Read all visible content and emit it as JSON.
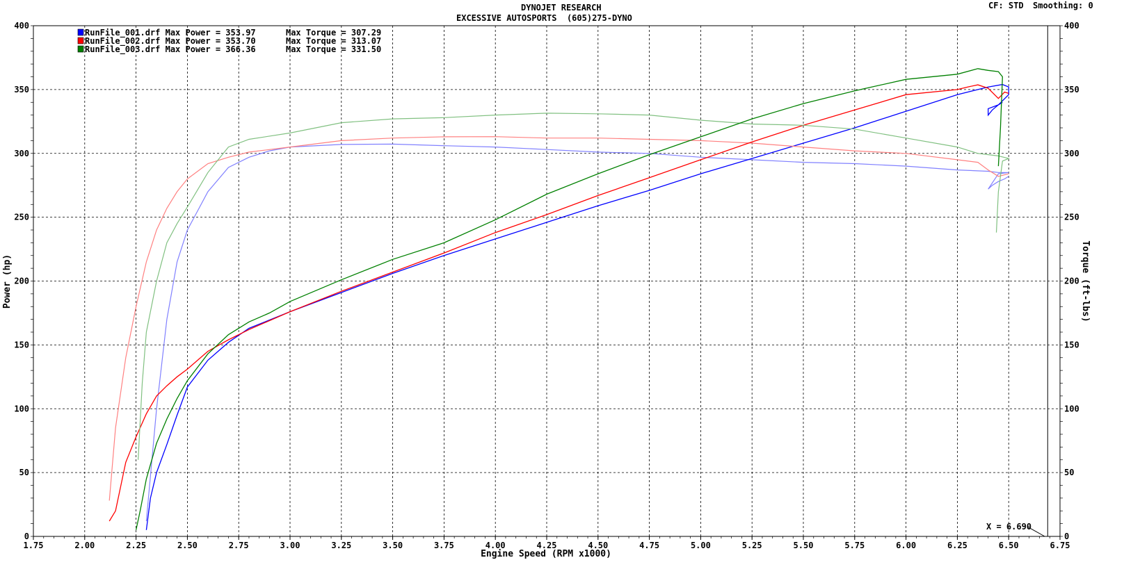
{
  "header": {
    "title": "DYNOJET RESEARCH",
    "subtitle": "EXCESSIVE AUTOSPORTS  (605)275-DYNO",
    "cf": "CF: STD",
    "smoothing": "Smoothing: 0"
  },
  "cursor": {
    "label": "X = 6.690",
    "x": 6.69
  },
  "chart_data": {
    "type": "line",
    "xlabel": "Engine Speed (RPM x1000)",
    "ylabel": "Power (hp)",
    "y2label": "Torque (ft-lbs)",
    "xlim": [
      1.75,
      6.75
    ],
    "ylim": [
      0,
      400
    ],
    "y2lim": [
      0,
      400
    ],
    "xticks": [
      "1.75",
      "2.00",
      "2.25",
      "2.50",
      "2.75",
      "3.00",
      "3.25",
      "3.50",
      "3.75",
      "4.00",
      "4.25",
      "4.50",
      "4.75",
      "5.00",
      "5.25",
      "5.50",
      "5.75",
      "6.00",
      "6.25",
      "6.50",
      "6.75"
    ],
    "yticks": [
      "0",
      "50",
      "100",
      "150",
      "200",
      "250",
      "300",
      "350",
      "400"
    ],
    "grid": true,
    "legend_position": "top-left",
    "series": [
      {
        "name": "RunFile_001.drf",
        "legend": "RunFile_001.drf Max Power = 353.97      Max Torque = 307.29",
        "color": "#0000ff",
        "power": {
          "x": [
            2.3,
            2.32,
            2.35,
            2.4,
            2.45,
            2.5,
            2.6,
            2.7,
            2.8,
            3.0,
            3.25,
            3.5,
            3.75,
            4.0,
            4.25,
            4.5,
            4.75,
            5.0,
            5.25,
            5.5,
            5.75,
            6.0,
            6.25,
            6.4,
            6.47,
            6.5,
            6.5,
            6.45,
            6.4,
            6.4,
            6.42,
            6.45,
            6.47
          ],
          "y": [
            5,
            30,
            50,
            72,
            95,
            117,
            138,
            152,
            163,
            176,
            191,
            206,
            220,
            233,
            246,
            259,
            271,
            284,
            296,
            308,
            320,
            333,
            346,
            352,
            353.97,
            352,
            346,
            338,
            335,
            330,
            334,
            338,
            340
          ]
        },
        "torque": {
          "x": [
            2.3,
            2.35,
            2.4,
            2.45,
            2.5,
            2.55,
            2.6,
            2.7,
            2.8,
            2.9,
            3.0,
            3.25,
            3.5,
            3.75,
            4.0,
            4.25,
            4.5,
            4.75,
            5.0,
            5.25,
            5.5,
            5.75,
            6.0,
            6.25,
            6.4,
            6.45,
            6.5,
            6.45,
            6.4,
            6.42,
            6.45,
            6.48,
            6.5
          ],
          "y": [
            12,
            100,
            170,
            215,
            240,
            255,
            270,
            289,
            297,
            302,
            305,
            307,
            307.29,
            306,
            305,
            303,
            301,
            300,
            297,
            295,
            293,
            292,
            290,
            287,
            286,
            285,
            285,
            284,
            272,
            275,
            278,
            280,
            282
          ]
        }
      },
      {
        "name": "RunFile_002.drf",
        "legend": "RunFile_002.drf Max Power = 353.70      Max Torque = 313.07",
        "color": "#ff0000",
        "power": {
          "x": [
            2.12,
            2.15,
            2.2,
            2.25,
            2.3,
            2.35,
            2.4,
            2.45,
            2.5,
            2.6,
            2.7,
            2.8,
            3.0,
            3.25,
            3.5,
            3.75,
            4.0,
            4.25,
            4.5,
            4.75,
            5.0,
            5.25,
            5.5,
            5.75,
            6.0,
            6.25,
            6.3,
            6.35,
            6.4,
            6.45,
            6.48,
            6.5
          ],
          "y": [
            12,
            20,
            58,
            78,
            96,
            110,
            118,
            125,
            131,
            145,
            154,
            162,
            176,
            192,
            207,
            222,
            238,
            252,
            267,
            281,
            295,
            309,
            322,
            334,
            346,
            350,
            352,
            353.7,
            351,
            343,
            348,
            347
          ]
        },
        "torque": {
          "x": [
            2.12,
            2.15,
            2.2,
            2.25,
            2.3,
            2.35,
            2.4,
            2.45,
            2.5,
            2.6,
            2.7,
            2.8,
            3.0,
            3.25,
            3.5,
            3.75,
            4.0,
            4.25,
            4.5,
            4.75,
            5.0,
            5.25,
            5.5,
            5.75,
            6.0,
            6.25,
            6.35,
            6.4,
            6.45,
            6.5
          ],
          "y": [
            28,
            85,
            140,
            180,
            215,
            240,
            257,
            270,
            280,
            292,
            297,
            301,
            305,
            310,
            312,
            313,
            313.07,
            312,
            312,
            311,
            310,
            308,
            305,
            302,
            300,
            295,
            293,
            287,
            282,
            284
          ]
        }
      },
      {
        "name": "RunFile_003.drf",
        "legend": "RunFile_003.drf Max Power = 366.36      Max Torque = 331.50",
        "color": "#008000",
        "power": {
          "x": [
            2.25,
            2.27,
            2.3,
            2.35,
            2.4,
            2.45,
            2.5,
            2.6,
            2.7,
            2.8,
            2.9,
            3.0,
            3.25,
            3.5,
            3.75,
            4.0,
            4.25,
            4.5,
            4.75,
            5.0,
            5.25,
            5.5,
            5.75,
            6.0,
            6.25,
            6.35,
            6.4,
            6.45,
            6.47,
            6.46,
            6.45
          ],
          "y": [
            5,
            20,
            45,
            73,
            92,
            108,
            122,
            143,
            158,
            168,
            175,
            184,
            201,
            217,
            230,
            248,
            268,
            284,
            299,
            313,
            327,
            339,
            349,
            358,
            362,
            366.36,
            365,
            364,
            360,
            320,
            290
          ]
        },
        "torque": {
          "x": [
            2.26,
            2.28,
            2.3,
            2.35,
            2.4,
            2.45,
            2.5,
            2.6,
            2.7,
            2.8,
            3.0,
            3.25,
            3.5,
            3.75,
            4.0,
            4.25,
            4.5,
            4.75,
            5.0,
            5.25,
            5.5,
            5.75,
            6.0,
            6.25,
            6.35,
            6.45,
            6.5,
            6.47,
            6.45,
            6.44
          ],
          "y": [
            60,
            120,
            160,
            200,
            230,
            245,
            258,
            285,
            305,
            311,
            316,
            324,
            327,
            328,
            330,
            331.5,
            331,
            330,
            326,
            323,
            322,
            319,
            312,
            305,
            300,
            298,
            296,
            294,
            270,
            238
          ]
        }
      }
    ]
  }
}
